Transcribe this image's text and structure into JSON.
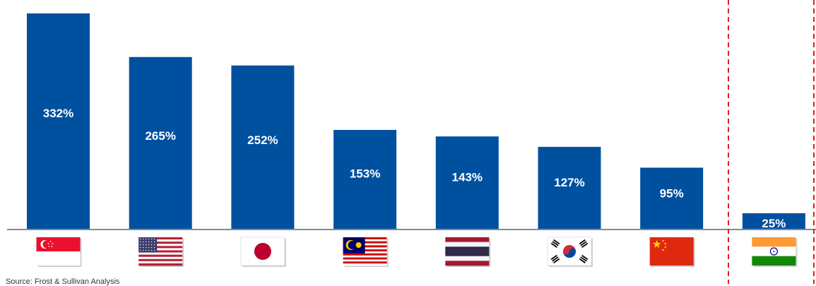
{
  "chart_data": {
    "type": "bar",
    "categories": [
      "Singapore",
      "United States",
      "Japan",
      "Malaysia",
      "Thailand",
      "South Korea",
      "China",
      "India"
    ],
    "values": [
      332,
      265,
      252,
      153,
      143,
      127,
      95,
      25
    ],
    "value_labels": [
      "332%",
      "265%",
      "252%",
      "153%",
      "143%",
      "127%",
      "95%",
      "25%"
    ],
    "x_tick_markers": [
      "flag-singapore",
      "flag-usa",
      "flag-japan",
      "flag-malaysia",
      "flag-thailand",
      "flag-south-korea",
      "flag-china",
      "flag-india"
    ],
    "ylim": [
      0,
      340
    ],
    "grid": false,
    "bar_color": "#0050a0",
    "highlight_divider_color": "#e02020",
    "highlighted_category": "India"
  },
  "footer": {
    "source": "Source: Frost & Sullivan Analysis"
  }
}
